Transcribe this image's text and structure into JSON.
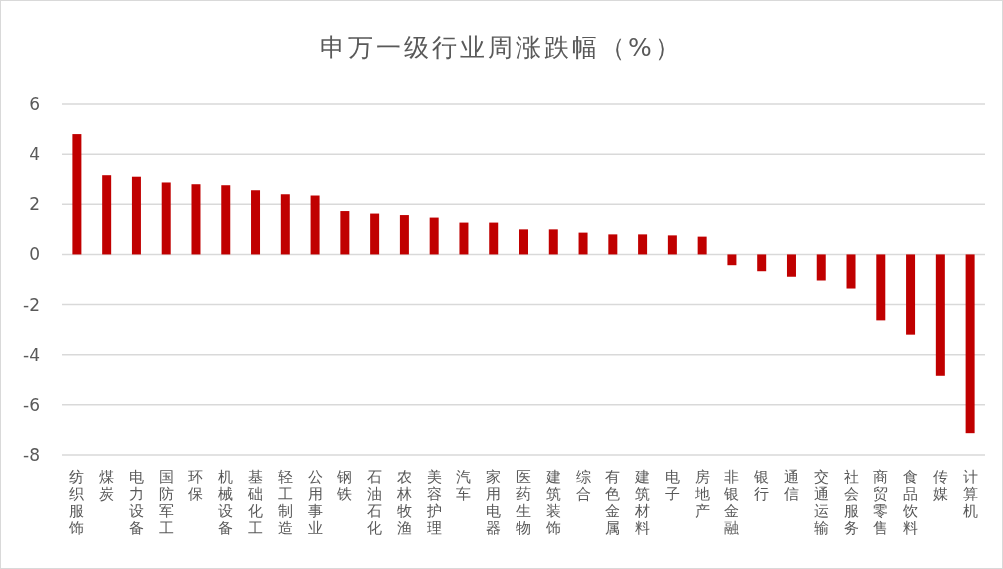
{
  "chart_data": {
    "type": "bar",
    "title": "申万一级行业周涨跌幅（%）",
    "categories": [
      "纺织服饰",
      "煤炭",
      "电力设备",
      "国防军工",
      "环保",
      "机械设备",
      "基础化工",
      "轻工制造",
      "公用事业",
      "钢铁",
      "石油石化",
      "农林牧渔",
      "美容护理",
      "汽车",
      "家用电器",
      "医药生物",
      "建筑装饰",
      "综合",
      "有色金属",
      "建筑材料",
      "电子",
      "房地产",
      "非银金融",
      "银行",
      "通信",
      "交通运输",
      "社会服务",
      "商贸零售",
      "食品饮料",
      "传媒",
      "计算机"
    ],
    "values": [
      4.8,
      3.16,
      3.1,
      2.87,
      2.8,
      2.76,
      2.56,
      2.4,
      2.35,
      1.73,
      1.63,
      1.57,
      1.47,
      1.27,
      1.27,
      1.0,
      1.0,
      0.87,
      0.8,
      0.8,
      0.76,
      0.71,
      -0.43,
      -0.67,
      -0.89,
      -1.04,
      -1.36,
      -2.63,
      -3.2,
      -4.84,
      -7.13
    ],
    "color": "#c00000",
    "ylim": [
      -8,
      6
    ],
    "yticks": [
      -8,
      -6,
      -4,
      -2,
      0,
      2,
      4,
      6
    ],
    "grid": "y"
  }
}
